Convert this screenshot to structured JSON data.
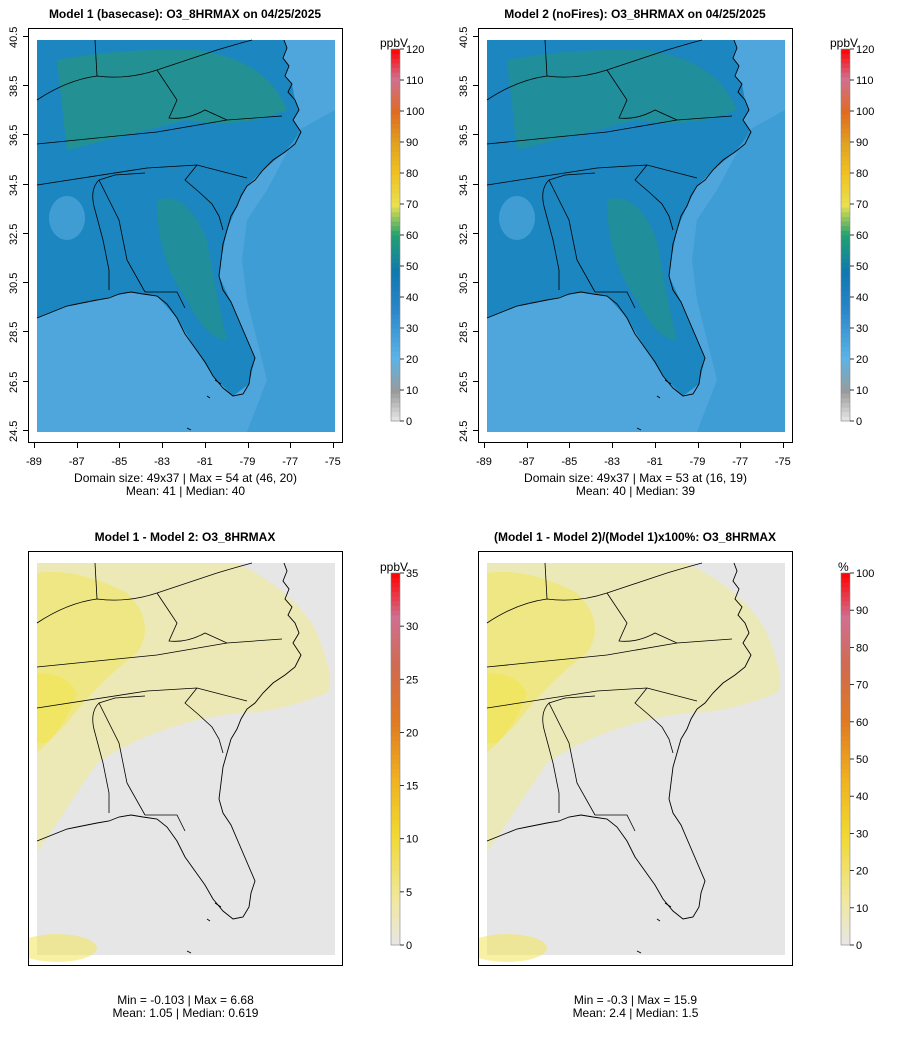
{
  "panels": [
    {
      "title": "Model 1 (basecase): O3_8HRMAX on 04/25/2025",
      "unit": "ppbV",
      "stats_line1": "Domain size: 49x37 | Max = 54 at (46, 20)",
      "stats_line2": "Mean: 41 |  Median: 40",
      "x_ticks": [
        "-89",
        "-87",
        "-85",
        "-83",
        "-81",
        "-79",
        "-77",
        "-75"
      ],
      "y_ticks": [
        "24.5",
        "26.5",
        "28.5",
        "30.5",
        "32.5",
        "34.5",
        "36.5",
        "38.5",
        "40.5"
      ],
      "colorbar_ticks": [
        "0",
        "10",
        "20",
        "30",
        "40",
        "50",
        "60",
        "70",
        "80",
        "90",
        "100",
        "110",
        "120"
      ],
      "colorbar_max": 120,
      "mean": 41,
      "max": 54
    },
    {
      "title": "Model 2 (noFires): O3_8HRMAX on 04/25/2025",
      "unit": "ppbV",
      "stats_line1": "Domain size: 49x37 | Max = 53 at (16, 19)",
      "stats_line2": "Mean: 40 |  Median: 39",
      "x_ticks": [
        "-89",
        "-87",
        "-85",
        "-83",
        "-81",
        "-79",
        "-77",
        "-75"
      ],
      "y_ticks": [
        "24.5",
        "26.5",
        "28.5",
        "30.5",
        "32.5",
        "34.5",
        "36.5",
        "38.5",
        "40.5"
      ],
      "colorbar_ticks": [
        "0",
        "10",
        "20",
        "30",
        "40",
        "50",
        "60",
        "70",
        "80",
        "90",
        "100",
        "110",
        "120"
      ],
      "colorbar_max": 120,
      "mean": 40,
      "max": 53
    },
    {
      "title": "Model 1 - Model 2: O3_8HRMAX",
      "unit": "ppbV",
      "stats_line1": "Min = -0.103 | Max = 6.68",
      "stats_line2": "Mean: 1.05 |  Median: 0.619",
      "colorbar_ticks": [
        "0",
        "5",
        "10",
        "15",
        "20",
        "25",
        "30",
        "35"
      ],
      "colorbar_max": 35,
      "mean": 1.05,
      "max": 6.68
    },
    {
      "title": "(Model 1 - Model 2)/(Model 1)x100%: O3_8HRMAX",
      "unit": "%",
      "stats_line1": "Min = -0.3 | Max = 15.9",
      "stats_line2": "Mean: 2.4 |  Median: 1.5",
      "colorbar_ticks": [
        "0",
        "10",
        "20",
        "30",
        "40",
        "50",
        "60",
        "70",
        "80",
        "90",
        "100"
      ],
      "colorbar_max": 100,
      "mean": 2.4,
      "max": 15.9
    }
  ],
  "colors": {
    "ozone_ocean": "#4ea6dc",
    "ozone_land": "#1b86c0",
    "ozone_high": "#2a9a6e",
    "diff_bg": "#e6e6e6",
    "diff_high": "#f2e65a",
    "diff_low": "#ece9b0",
    "boundary": "#000000"
  }
}
